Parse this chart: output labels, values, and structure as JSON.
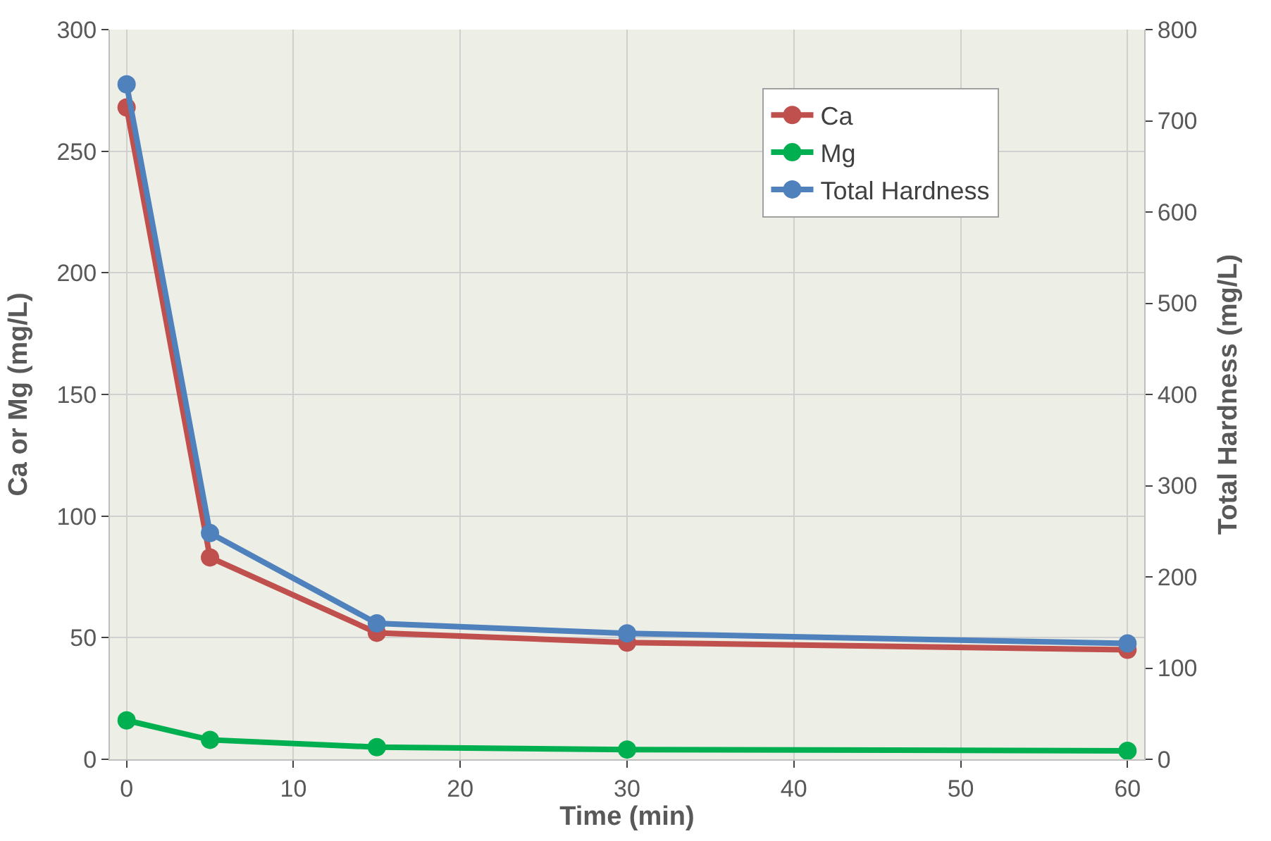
{
  "chart_data": {
    "type": "line",
    "xlabel": "Time (min)",
    "ylabel": "Ca or Mg (mg/L)",
    "y2label": "Total Hardness (mg/L)",
    "x": [
      0,
      5,
      15,
      30,
      60
    ],
    "series": [
      {
        "name": "Ca",
        "color": "#c0504d",
        "values": [
          268,
          83,
          52,
          48,
          45
        ]
      },
      {
        "name": "Mg",
        "color": "#00b050",
        "values": [
          16,
          8,
          5,
          4,
          3.5
        ]
      },
      {
        "name": "Total Hardness",
        "color": "#4f81bd",
        "values": [
          740,
          248,
          149,
          138,
          127
        ],
        "axis": "y2"
      }
    ],
    "xlim": [
      -1,
      61
    ],
    "xticks": [
      0,
      10,
      20,
      30,
      40,
      50,
      60
    ],
    "ylim": [
      0,
      300
    ],
    "yticks": [
      0,
      50,
      100,
      150,
      200,
      250,
      300
    ],
    "y2lim": [
      0,
      800
    ],
    "y2ticks": [
      0,
      100,
      200,
      300,
      400,
      500,
      600,
      700,
      800
    ],
    "grid": true,
    "legend": "top right",
    "marker": "circle",
    "line_style": "solid"
  }
}
